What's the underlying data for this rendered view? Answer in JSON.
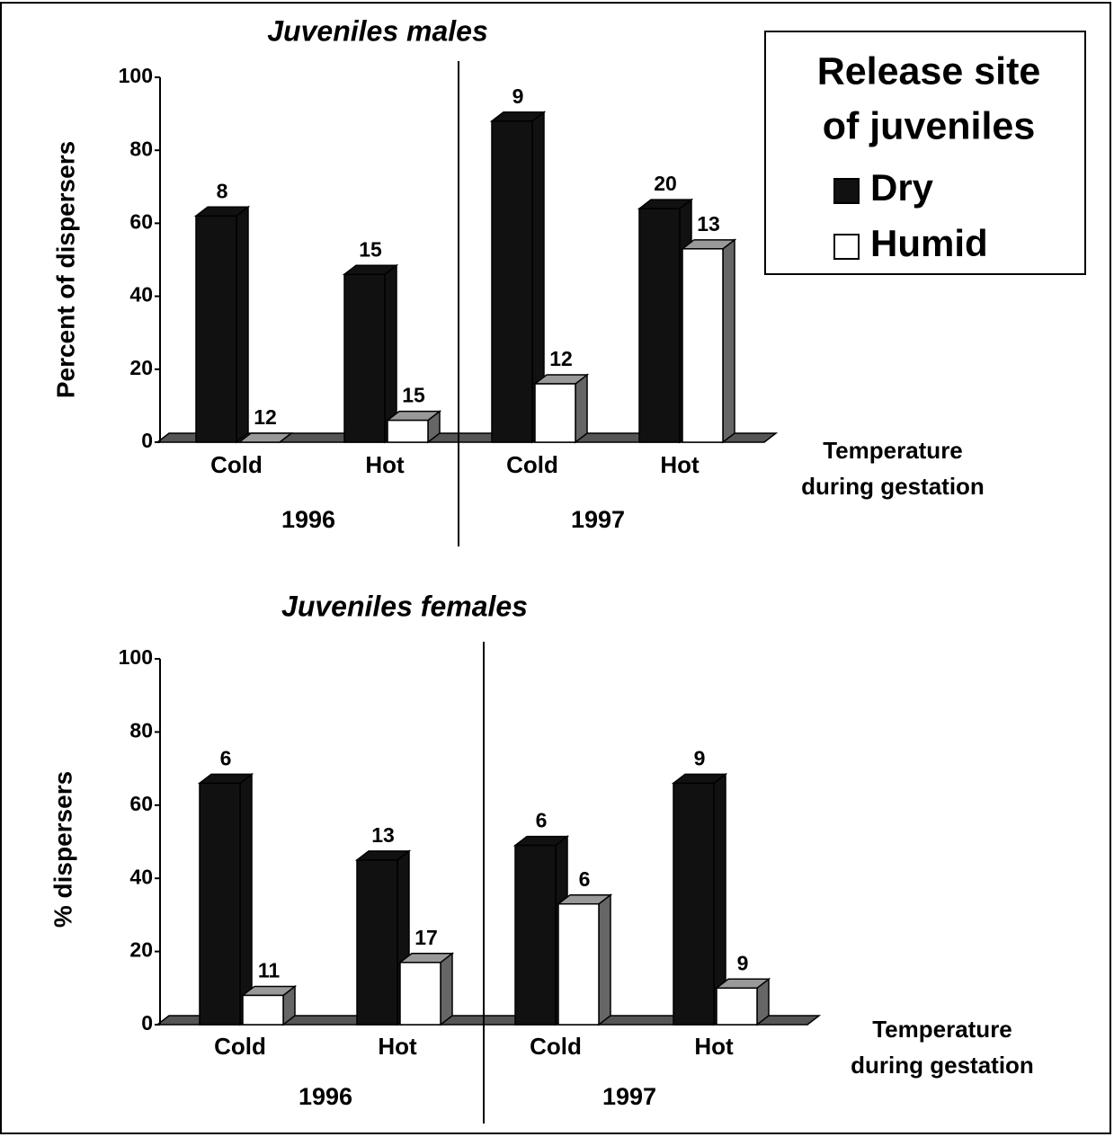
{
  "chart_data": [
    {
      "type": "bar3d",
      "title": "Juveniles males",
      "ylabel": "Percent of dispersers",
      "xlabel": [
        "Temperature",
        "during gestation"
      ],
      "categories": [
        "Cold",
        "Hot",
        "Cold",
        "Hot"
      ],
      "groups": [
        "1996",
        "1997"
      ],
      "ylim": [
        0,
        100
      ],
      "yticks": [
        0,
        20,
        40,
        60,
        80,
        100
      ],
      "legend_title": [
        "Release site",
        "of juveniles"
      ],
      "series": [
        {
          "name": "Dry",
          "color": "#111111",
          "values": [
            62,
            46,
            88,
            64
          ],
          "bar_labels": [
            8,
            15,
            9,
            20
          ]
        },
        {
          "name": "Humid",
          "color": "#ffffff",
          "values": [
            0,
            6,
            16,
            53
          ],
          "bar_labels": [
            12,
            15,
            12,
            13
          ]
        }
      ]
    },
    {
      "type": "bar3d",
      "title": "Juveniles females",
      "ylabel": "% dispersers",
      "xlabel": [
        "Temperature",
        "during gestation"
      ],
      "categories": [
        "Cold",
        "Hot",
        "Cold",
        "Hot"
      ],
      "groups": [
        "1996",
        "1997"
      ],
      "ylim": [
        0,
        100
      ],
      "yticks": [
        0,
        20,
        40,
        60,
        80,
        100
      ],
      "series": [
        {
          "name": "Dry",
          "color": "#111111",
          "values": [
            66,
            45,
            49,
            66
          ],
          "bar_labels": [
            6,
            13,
            6,
            9
          ]
        },
        {
          "name": "Humid",
          "color": "#ffffff",
          "values": [
            8,
            17,
            33,
            10
          ],
          "bar_labels": [
            11,
            17,
            6,
            9
          ]
        }
      ]
    }
  ]
}
